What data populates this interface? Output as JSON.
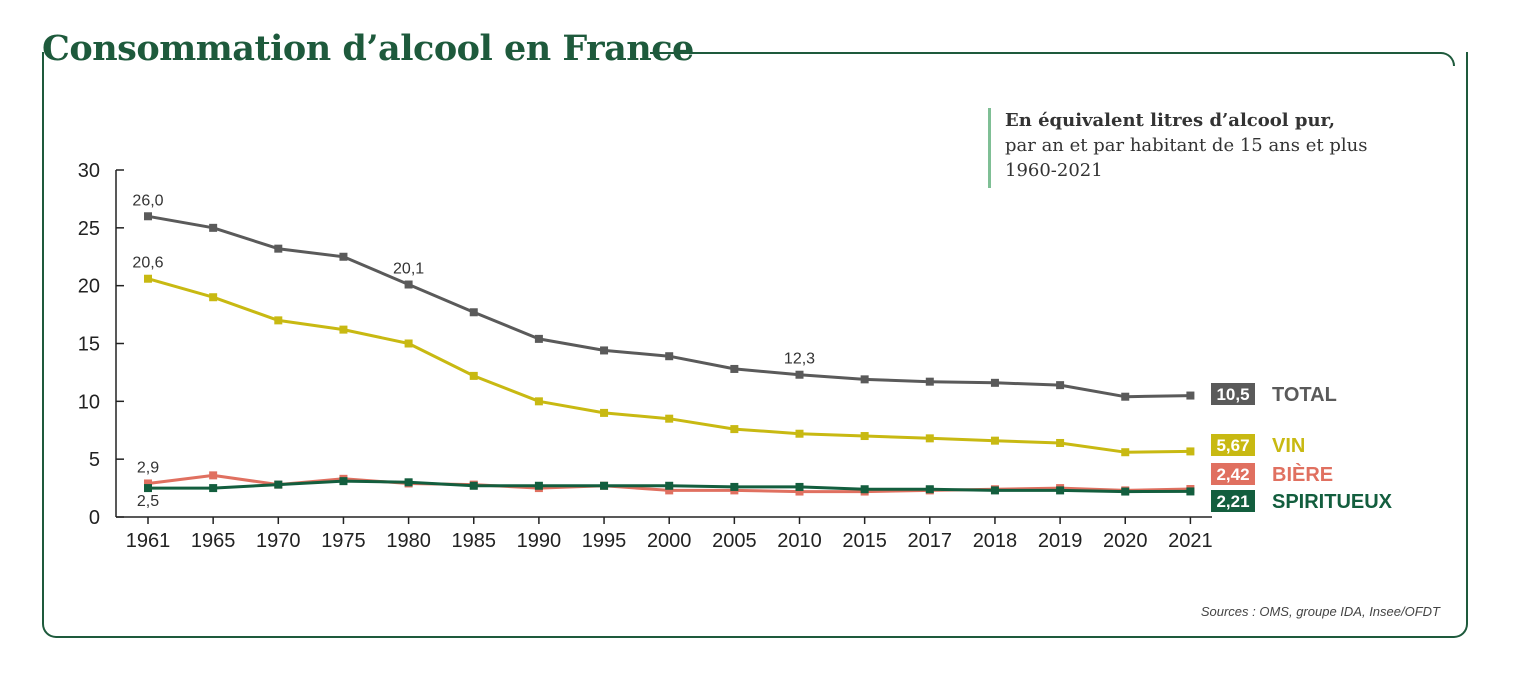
{
  "title": "Consommation d’alcool en France",
  "unit_note": {
    "line1": "En équivalent litres d’alcool pur,",
    "line2": "par an et par habitant de 15 ans et plus",
    "line3": "1960-2021"
  },
  "source": "Sources : OMS, groupe IDA, Insee/OFDT",
  "colors": {
    "frame": "#1e5a3c",
    "total": "#5a5a5a",
    "vin": "#c8b912",
    "biere": "#e07060",
    "spiritueux": "#135e3e"
  },
  "chart_data": {
    "type": "line",
    "categories": [
      "1961",
      "1965",
      "1970",
      "1975",
      "1980",
      "1985",
      "1990",
      "1995",
      "2000",
      "2005",
      "2010",
      "2015",
      "2017",
      "2018",
      "2019",
      "2020",
      "2021"
    ],
    "ylim": [
      0,
      30
    ],
    "yticks": [
      "0",
      "5",
      "10",
      "15",
      "20",
      "25",
      "30"
    ],
    "series": [
      {
        "name": "TOTAL",
        "key": "total",
        "end_label": "10,5",
        "values": [
          26.0,
          25.0,
          23.2,
          22.5,
          20.1,
          17.7,
          15.4,
          14.4,
          13.9,
          12.8,
          12.3,
          11.9,
          11.7,
          11.6,
          11.4,
          10.4,
          10.5
        ]
      },
      {
        "name": "VIN",
        "key": "vin",
        "end_label": "5,67",
        "values": [
          20.6,
          19.0,
          17.0,
          16.2,
          15.0,
          12.2,
          10.0,
          9.0,
          8.5,
          7.6,
          7.2,
          7.0,
          6.8,
          6.6,
          6.4,
          5.6,
          5.67
        ]
      },
      {
        "name": "BIÈRE",
        "key": "biere",
        "end_label": "2,42",
        "values": [
          2.9,
          3.6,
          2.8,
          3.3,
          2.9,
          2.8,
          2.5,
          2.7,
          2.3,
          2.3,
          2.2,
          2.2,
          2.3,
          2.4,
          2.5,
          2.3,
          2.42
        ]
      },
      {
        "name": "SPIRITUEUX",
        "key": "spiritueux",
        "end_label": "2,21",
        "values": [
          2.5,
          2.5,
          2.8,
          3.1,
          3.0,
          2.7,
          2.7,
          2.7,
          2.7,
          2.6,
          2.6,
          2.4,
          2.4,
          2.3,
          2.3,
          2.2,
          2.21
        ]
      }
    ],
    "annotations": [
      {
        "series": "total",
        "index": 0,
        "text": "26,0"
      },
      {
        "series": "total",
        "index": 4,
        "text": "20,1"
      },
      {
        "series": "total",
        "index": 10,
        "text": "12,3"
      },
      {
        "series": "vin",
        "index": 0,
        "text": "20,6"
      },
      {
        "series": "biere",
        "index": 0,
        "text": "2,9"
      },
      {
        "series": "spiritueux",
        "index": 0,
        "text": "2,5"
      }
    ]
  }
}
